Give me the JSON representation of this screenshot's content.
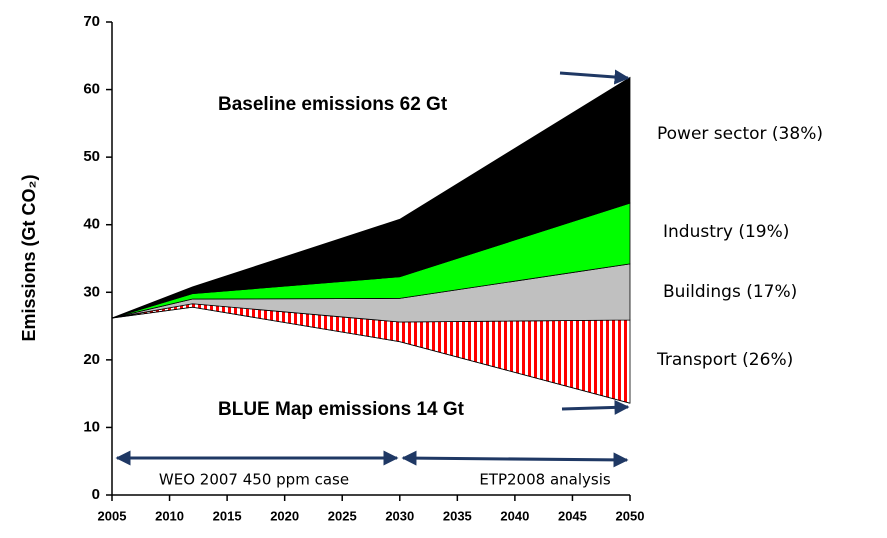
{
  "chart_data": {
    "type": "stacked_area",
    "y_label": "Emissions (Gt CO₂)",
    "x": [
      2005,
      2012,
      2030,
      2050
    ],
    "base": {
      "values": [
        26.2,
        27.8,
        22.7,
        13.6
      ]
    },
    "series": [
      {
        "name": "Transport (26%)",
        "color": "#ff0000",
        "hatch": "vertical",
        "values": [
          0,
          0.5,
          2.9,
          12.3
        ]
      },
      {
        "name": "Buildings (17%)",
        "color": "#c0c0c0",
        "values": [
          0,
          0.7,
          3.5,
          8.3
        ]
      },
      {
        "name": "Industry (19%)",
        "color": "#00ff00",
        "values": [
          0,
          0.8,
          3.2,
          9.0
        ]
      },
      {
        "name": "Power sector (38%)",
        "color": "#000000",
        "values": [
          0,
          1.0,
          8.5,
          18.6
        ]
      }
    ],
    "annotations": {
      "baseline": "Baseline emissions 62 Gt",
      "blue_map": "BLUE Map emissions 14 Gt",
      "weo": "WEO 2007  450 ppm case",
      "etp": "ETP2008 analysis"
    },
    "xlim": [
      2005,
      2050
    ],
    "xticks": [
      2005,
      2010,
      2015,
      2020,
      2025,
      2030,
      2035,
      2040,
      2045,
      2050
    ],
    "ylim": [
      0,
      70
    ],
    "yticks": [
      0,
      10,
      20,
      30,
      40,
      50,
      60,
      70
    ]
  }
}
